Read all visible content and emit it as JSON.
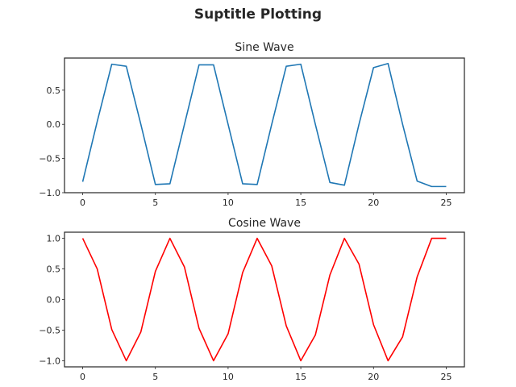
{
  "suptitle": "Suptitle Plotting",
  "chart_data": [
    {
      "type": "line",
      "title": "Sine Wave",
      "xlabel": "",
      "ylabel": "",
      "color": "#1f77b4",
      "x": [
        0,
        1,
        2,
        3,
        4,
        5,
        6,
        7,
        8,
        9,
        10,
        11,
        12,
        13,
        14,
        15,
        16,
        17,
        18,
        19,
        20,
        21,
        22,
        23,
        24,
        25
      ],
      "y": [
        -0.84,
        0.04,
        0.88,
        0.85,
        0.0,
        -0.88,
        -0.87,
        0.0,
        0.87,
        0.87,
        0.0,
        -0.87,
        -0.88,
        0.0,
        0.85,
        0.88,
        0.0,
        -0.85,
        -0.89,
        0.0,
        0.83,
        0.89,
        0.0,
        -0.83,
        -0.91,
        -0.91
      ],
      "xlim": [
        -1.25,
        26.25
      ],
      "ylim": [
        -1.0,
        0.97
      ],
      "xticks": [
        0,
        5,
        10,
        15,
        20,
        25
      ],
      "xtick_labels": [
        "0",
        "5",
        "10",
        "15",
        "20",
        "25"
      ],
      "yticks": [
        -1.0,
        -0.5,
        0.0,
        0.5
      ],
      "ytick_labels": [
        "−1.0",
        "−0.5",
        "0.0",
        "0.5"
      ],
      "grid": false
    },
    {
      "type": "line",
      "title": "Cosine Wave",
      "xlabel": "",
      "ylabel": "",
      "color": "#ff0000",
      "x": [
        0,
        1,
        2,
        3,
        4,
        5,
        6,
        7,
        8,
        9,
        10,
        11,
        12,
        13,
        14,
        15,
        16,
        17,
        18,
        19,
        20,
        21,
        22,
        23,
        24,
        25
      ],
      "y": [
        1.0,
        0.5,
        -0.49,
        -1.0,
        -0.53,
        0.46,
        1.0,
        0.53,
        -0.47,
        -1.0,
        -0.56,
        0.44,
        1.0,
        0.55,
        -0.43,
        -1.0,
        -0.58,
        0.4,
        1.0,
        0.58,
        -0.41,
        -1.0,
        -0.61,
        0.37,
        1.0,
        1.0
      ],
      "xlim": [
        -1.25,
        26.25
      ],
      "ylim": [
        -1.1,
        1.1
      ],
      "xticks": [
        0,
        5,
        10,
        15,
        20,
        25
      ],
      "xtick_labels": [
        "0",
        "5",
        "10",
        "15",
        "20",
        "25"
      ],
      "yticks": [
        -1.0,
        -0.5,
        0.0,
        0.5,
        1.0
      ],
      "ytick_labels": [
        "−1.0",
        "−0.5",
        "0.0",
        "0.5",
        "1.0"
      ],
      "grid": false
    }
  ]
}
